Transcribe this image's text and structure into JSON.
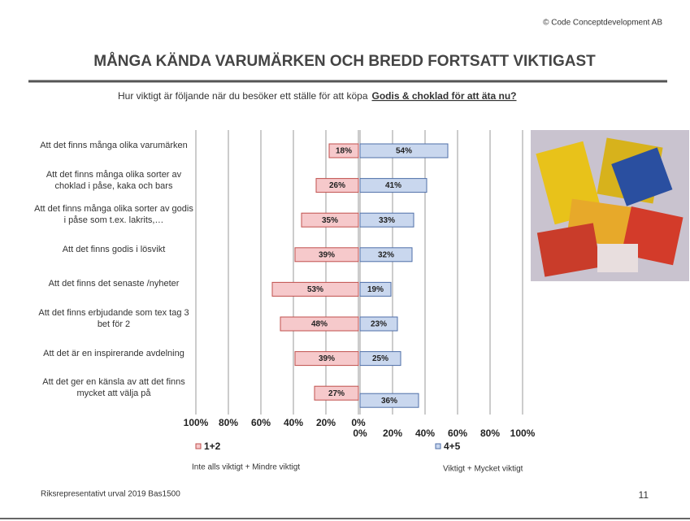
{
  "copyright": "© Code Conceptdevelopment AB",
  "title": "MÅNGA KÄNDA VARUMÄRKEN OCH BREDD FORTSATT VIKTIGAST",
  "subtitle": {
    "text": "Hur viktigt är följande när du besöker ett ställe för att köpa",
    "emphasis": "Godis & choklad för att äta nu?"
  },
  "chart_data": {
    "type": "diverging-bar",
    "categories": [
      "Att det finns många olika varumärken",
      "Att det finns många olika sorter av choklad i påse, kaka och bars",
      "Att det finns många olika sorter av godis i påse som t.ex. lakrits,…",
      "Att det finns godis i lösvikt",
      "Att det finns det senaste /nyheter",
      "Att det finns erbjudande som tex tag 3 bet för 2",
      "Att det är en inspirerande avdelning",
      "Att det ger en känsla av att det finns mycket att välja på"
    ],
    "series": [
      {
        "name": "1+2",
        "description": "Inte alls viktigt + Mindre viktigt",
        "color": "#f6c9cb",
        "border": "#c0504d",
        "side": "left",
        "values": [
          18,
          26,
          35,
          39,
          53,
          48,
          39,
          27
        ],
        "value_labels": [
          "18%",
          "26%",
          "35%",
          "39%",
          "53%",
          "48%",
          "39%",
          "27%"
        ]
      },
      {
        "name": "4+5",
        "description": "Viktigt + Mycket viktigt",
        "color": "#c9d7ee",
        "border": "#4f6fa8",
        "side": "right",
        "values": [
          54,
          41,
          33,
          32,
          19,
          23,
          25,
          36
        ],
        "value_labels": [
          "54%",
          "41%",
          "33%",
          "32%",
          "19%",
          "23%",
          "25%",
          "36%"
        ]
      }
    ],
    "left_axis": {
      "xlim": [
        100,
        0
      ],
      "xticks": [
        {
          "value": 100,
          "label": "100%"
        },
        {
          "value": 80,
          "label": "80%"
        },
        {
          "value": 60,
          "label": "60%"
        },
        {
          "value": 40,
          "label": "40%"
        },
        {
          "value": 20,
          "label": "20%"
        },
        {
          "value": 0,
          "label": "0%"
        }
      ]
    },
    "right_axis": {
      "xlim": [
        0,
        100
      ],
      "xticks": [
        {
          "value": 0,
          "label": "0%"
        },
        {
          "value": 20,
          "label": "20%"
        },
        {
          "value": 40,
          "label": "40%"
        },
        {
          "value": 60,
          "label": "60%"
        },
        {
          "value": 80,
          "label": "80%"
        },
        {
          "value": 100,
          "label": "100%"
        }
      ]
    },
    "grid": true
  },
  "footnote": "Riksrepresentativt urval 2019 Bas1500",
  "page_number": "11"
}
